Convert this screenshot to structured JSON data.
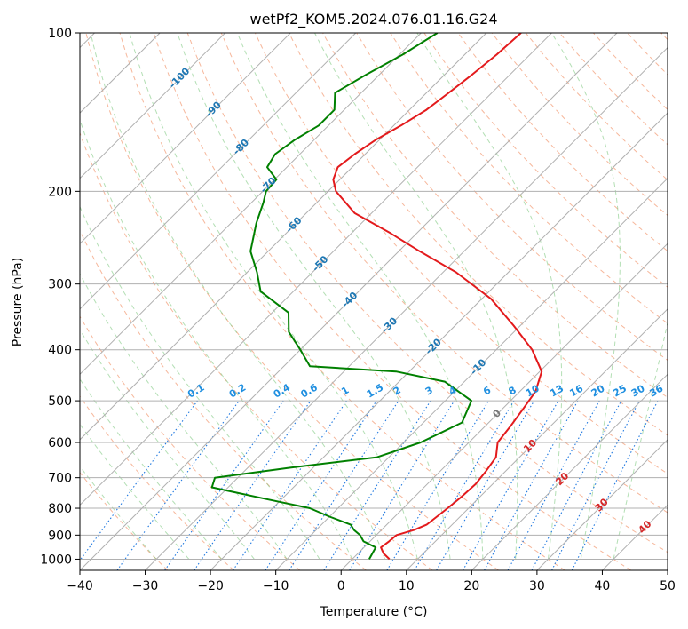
{
  "chart_data": {
    "type": "line",
    "title": "wetPf2_KOM5.2024.076.01.16.G24",
    "xlabel": "Temperature (°C)",
    "ylabel": "Pressure (hPa)",
    "xlim": [
      -40,
      50
    ],
    "ylim": [
      1050,
      100
    ],
    "y_scale": "log",
    "skew": "45-degree skew-T",
    "grid": true,
    "x_ticks": [
      "−40",
      "−30",
      "−20",
      "−10",
      "0",
      "10",
      "20",
      "30",
      "40",
      "50"
    ],
    "x_tick_values": [
      -40,
      -30,
      -20,
      -10,
      0,
      10,
      20,
      30,
      40,
      50
    ],
    "y_ticks": [
      "100",
      "200",
      "300",
      "400",
      "500",
      "600",
      "700",
      "800",
      "900",
      "1000"
    ],
    "y_tick_values": [
      100,
      200,
      300,
      400,
      500,
      600,
      700,
      800,
      900,
      1000
    ],
    "series": [
      {
        "color": "#e31a1c",
        "x": [
          5.7,
          3.9,
          2.6,
          2.9,
          3.1,
          5.0,
          6.1,
          6.4,
          6.8,
          7.2,
          7.4,
          7.0,
          6.4,
          4.4,
          3.9,
          3.2,
          2.4,
          0.3,
          -4.5,
          -11.0,
          -18.6,
          -28.0,
          -36.8,
          -44.1,
          -52.6,
          -58.8,
          -61.0,
          -62.2,
          -61.6,
          -60.6,
          -58.9,
          -57.4,
          -56.6,
          -55.8,
          -55.1,
          -54.7
        ],
        "y": [
          1000,
          975,
          950,
          925,
          900,
          880,
          860,
          835,
          800,
          760,
          720,
          680,
          640,
          600,
          560,
          520,
          480,
          440,
          400,
          360,
          320,
          285,
          260,
          240,
          220,
          200,
          190,
          180,
          170,
          160,
          150,
          140,
          130,
          120,
          110,
          100
        ]
      },
      {
        "color": "#008000",
        "x": [
          2.6,
          2.2,
          1.8,
          -1.0,
          -2.5,
          -4.2,
          -5.5,
          -10.0,
          -14.3,
          -22.0,
          -32.5,
          -33.5,
          -23.5,
          -11.8,
          -7.4,
          -4.1,
          -6.0,
          -13.0,
          -22.0,
          -36.0,
          -40.0,
          -44.5,
          -47.5,
          -55.0,
          -58.5,
          -62.7,
          -66.1,
          -68.2,
          -69.5,
          -69.7,
          -73.0,
          -73.8,
          -73.0,
          -71.5,
          -71.5,
          -74.0,
          -72.0,
          -69.5,
          -67.5
        ],
        "y": [
          1000,
          975,
          950,
          925,
          900,
          880,
          860,
          830,
          800,
          770,
          730,
          700,
          670,
          640,
          600,
          550,
          500,
          460,
          440,
          430,
          400,
          370,
          340,
          310,
          285,
          260,
          230,
          210,
          200,
          190,
          180,
          170,
          160,
          150,
          140,
          130,
          120,
          110,
          100
        ]
      }
    ],
    "annotations": {
      "dry_adiabats": "−100 to 60 °C potential temperature, red dashed",
      "moist_adiabats": "green dashed",
      "mixing_ratio": [
        "0.1",
        "0.2",
        "0.4",
        "0.6",
        "1",
        "1.5",
        "2",
        "3",
        "4",
        "6",
        "8",
        "10",
        "13",
        "16",
        "20",
        "25",
        "30",
        "36"
      ],
      "isotherm_labels": [
        "-100",
        "-90",
        "-80",
        "-70",
        "-60",
        "-50",
        "-40",
        "-30",
        "-20",
        "-10",
        "0",
        "10",
        "20",
        "30",
        "40"
      ]
    }
  }
}
